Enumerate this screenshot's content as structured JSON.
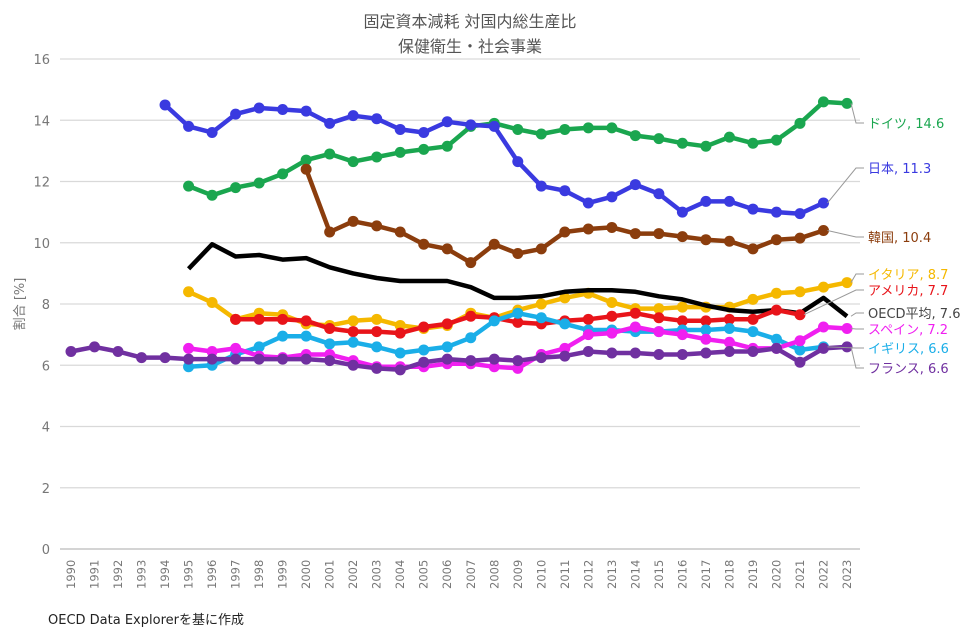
{
  "chart_data": {
    "type": "line",
    "title": [
      "固定資本減耗 対国内総生産比",
      "保健衛生・社会事業"
    ],
    "ylabel": "割合 [%]",
    "xlabel": "",
    "ylim": [
      0,
      16
    ],
    "yticks": [
      0,
      2,
      4,
      6,
      8,
      10,
      12,
      14,
      16
    ],
    "x": [
      1990,
      1991,
      1992,
      1993,
      1994,
      1995,
      1996,
      1997,
      1998,
      1999,
      2000,
      2001,
      2002,
      2003,
      2004,
      2005,
      2006,
      2007,
      2008,
      2009,
      2010,
      2011,
      2012,
      2013,
      2014,
      2015,
      2016,
      2017,
      2018,
      2019,
      2020,
      2021,
      2022,
      2023
    ],
    "grid": true,
    "legend": "end-labels-right",
    "source": "OECD Data Explorerを基に作成",
    "series": [
      {
        "name": "ドイツ",
        "label": "ドイツ, 14.6",
        "color": "#1aa64f",
        "markers": true,
        "values": [
          null,
          null,
          null,
          null,
          null,
          11.85,
          11.55,
          11.8,
          11.95,
          12.25,
          12.7,
          12.9,
          12.65,
          12.8,
          12.95,
          13.05,
          13.15,
          13.8,
          13.9,
          13.7,
          13.55,
          13.7,
          13.75,
          13.75,
          13.5,
          13.4,
          13.25,
          13.15,
          13.45,
          13.25,
          13.35,
          13.9,
          14.6,
          14.55
        ]
      },
      {
        "name": "日本",
        "label": "日本, 11.3",
        "color": "#3a3ae0",
        "markers": true,
        "values": [
          null,
          null,
          null,
          null,
          14.5,
          13.8,
          13.6,
          14.2,
          14.4,
          14.35,
          14.3,
          13.9,
          14.15,
          14.05,
          13.7,
          13.6,
          13.95,
          13.85,
          13.8,
          12.65,
          11.85,
          11.7,
          11.3,
          11.5,
          11.9,
          11.6,
          11.0,
          11.35,
          11.35,
          11.1,
          11.0,
          10.95,
          11.3,
          null
        ]
      },
      {
        "name": "韓国",
        "label": "韓国, 10.4",
        "color": "#8b3d0d",
        "markers": true,
        "values": [
          null,
          null,
          null,
          null,
          null,
          null,
          null,
          null,
          null,
          null,
          12.4,
          10.35,
          10.7,
          10.55,
          10.35,
          9.95,
          9.8,
          9.35,
          9.95,
          9.65,
          9.8,
          10.35,
          10.45,
          10.5,
          10.3,
          10.3,
          10.2,
          10.1,
          10.05,
          9.8,
          10.1,
          10.15,
          10.4,
          null
        ]
      },
      {
        "name": "イタリア",
        "label": "イタリア, 8.7",
        "color": "#f5b800",
        "markers": true,
        "values": [
          null,
          null,
          null,
          null,
          null,
          8.4,
          8.05,
          7.5,
          7.7,
          7.65,
          7.35,
          7.3,
          7.45,
          7.5,
          7.3,
          7.2,
          7.3,
          7.7,
          7.55,
          7.8,
          8.0,
          8.2,
          8.35,
          8.05,
          7.85,
          7.85,
          7.9,
          7.9,
          7.9,
          8.15,
          8.35,
          8.4,
          8.55,
          8.7
        ]
      },
      {
        "name": "OECD平均",
        "label": "OECD平均, 7.6",
        "color": "#000000",
        "markers": false,
        "values": [
          null,
          null,
          null,
          null,
          null,
          9.15,
          9.95,
          9.55,
          9.6,
          9.45,
          9.5,
          9.2,
          9.0,
          8.85,
          8.75,
          8.75,
          8.75,
          8.55,
          8.2,
          8.2,
          8.25,
          8.4,
          8.45,
          8.45,
          8.4,
          8.25,
          8.15,
          7.95,
          7.8,
          7.75,
          7.8,
          7.7,
          8.2,
          7.6
        ]
      },
      {
        "name": "アメリカ",
        "label": "アメリカ, 7.7",
        "color": "#e8141a",
        "markers": true,
        "values": [
          null,
          null,
          null,
          null,
          null,
          null,
          null,
          7.5,
          7.5,
          7.5,
          7.45,
          7.2,
          7.1,
          7.1,
          7.05,
          7.25,
          7.35,
          7.6,
          7.55,
          7.4,
          7.35,
          7.45,
          7.5,
          7.6,
          7.7,
          7.55,
          7.45,
          7.45,
          7.5,
          7.5,
          7.8,
          7.65,
          null,
          null
        ]
      },
      {
        "name": "イギリス",
        "label": "イギリス, 6.6",
        "color": "#1aaee8",
        "markers": true,
        "values": [
          null,
          null,
          null,
          null,
          null,
          5.95,
          6.0,
          6.35,
          6.6,
          6.95,
          6.95,
          6.7,
          6.75,
          6.6,
          6.4,
          6.5,
          6.6,
          6.9,
          7.45,
          7.7,
          7.55,
          7.35,
          7.15,
          7.15,
          7.1,
          7.1,
          7.15,
          7.15,
          7.2,
          7.1,
          6.85,
          6.5,
          6.6,
          null
        ]
      },
      {
        "name": "スペイン",
        "label": "スペイン, 7.2",
        "color": "#f01ff0",
        "markers": true,
        "values": [
          null,
          null,
          null,
          null,
          null,
          6.55,
          6.45,
          6.55,
          6.3,
          6.25,
          6.35,
          6.35,
          6.15,
          5.95,
          5.95,
          5.95,
          6.05,
          6.05,
          5.95,
          5.9,
          6.35,
          6.55,
          7.0,
          7.05,
          7.25,
          7.1,
          7.0,
          6.85,
          6.75,
          6.55,
          6.55,
          6.8,
          7.25,
          7.2
        ]
      },
      {
        "name": "フランス",
        "label": "フランス, 6.6",
        "color": "#7030a0",
        "markers": true,
        "values": [
          6.45,
          6.6,
          6.45,
          6.25,
          6.25,
          6.2,
          6.2,
          6.2,
          6.2,
          6.2,
          6.2,
          6.15,
          6.0,
          5.9,
          5.85,
          6.1,
          6.2,
          6.15,
          6.2,
          6.15,
          6.25,
          6.3,
          6.45,
          6.4,
          6.4,
          6.35,
          6.35,
          6.4,
          6.45,
          6.45,
          6.55,
          6.1,
          6.55,
          6.6
        ]
      }
    ]
  }
}
